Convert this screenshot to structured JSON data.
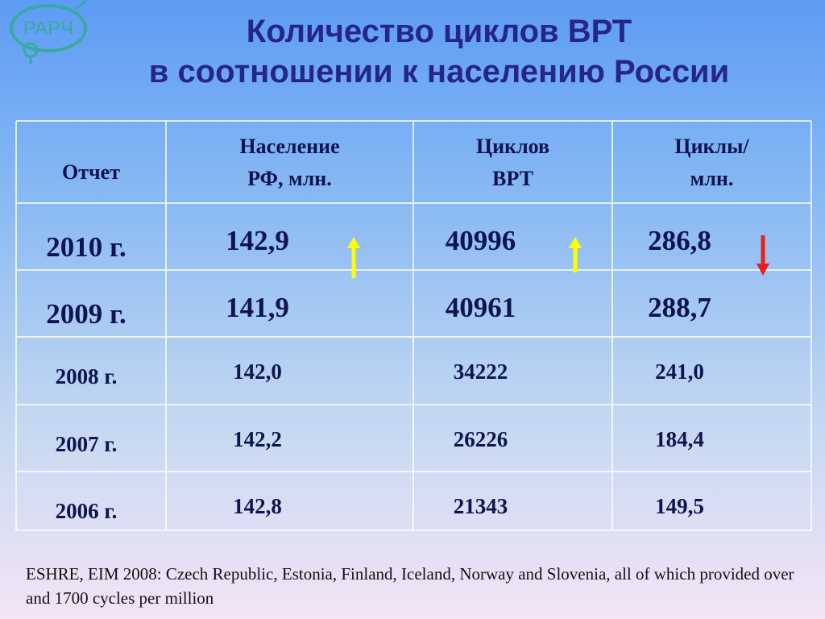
{
  "logo": "РАРЧ",
  "header": {
    "title": [
      "Количество циклов ВРТ",
      "в соотношении к населению России"
    ]
  },
  "table": {
    "header": [
      [
        "Отчет"
      ],
      [
        "Население",
        "РФ, млн."
      ],
      [
        "Циклов",
        "ВРТ"
      ],
      [
        "Циклы/",
        "млн."
      ]
    ],
    "rows": [
      [
        "2010 г.",
        "142,9",
        "40996",
        "286,8"
      ],
      [
        "2009 г.",
        "141,9",
        "40961",
        "288,7"
      ],
      [
        "2008 г.",
        "142,0",
        "34222",
        "241,0"
      ],
      [
        "2007 г.",
        "142,2",
        "26226",
        "184,4"
      ],
      [
        "2006 г.",
        "142,8",
        "21343",
        "149,5"
      ]
    ]
  },
  "footnote": "ESHRE, EIM 2008:  Czech Republic, Estonia, Finland, Iceland, Norway and Slovenia, all of which provided over and 1700 cycles per million"
}
